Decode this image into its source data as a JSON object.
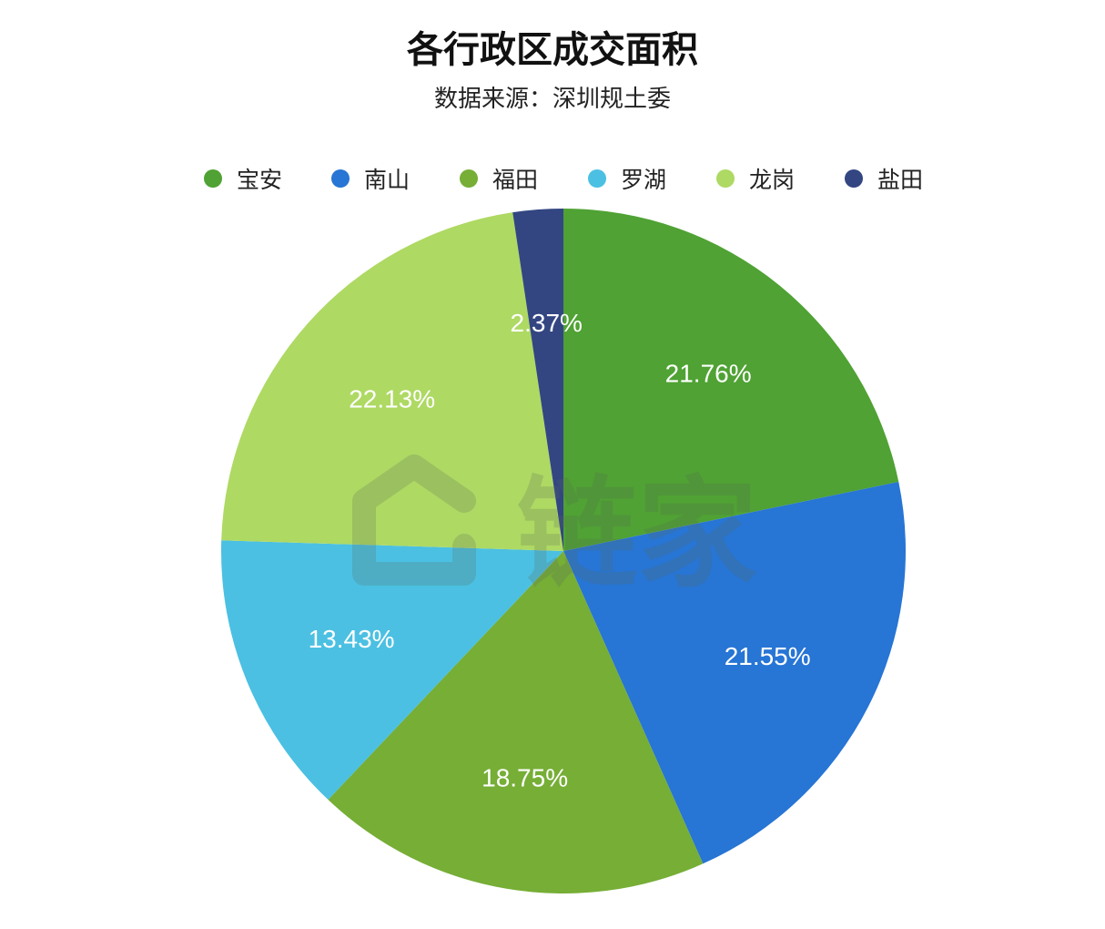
{
  "chart_data": {
    "type": "pie",
    "title": "各行政区成交面积",
    "subtitle": "数据来源：深圳规土委",
    "legend_position": "top",
    "categories": [
      "宝安",
      "南山",
      "福田",
      "罗湖",
      "龙岗",
      "盐田"
    ],
    "values": [
      21.76,
      21.55,
      18.75,
      13.43,
      22.13,
      2.37
    ],
    "labels": [
      "21.76%",
      "21.55%",
      "18.75%",
      "13.43%",
      "22.13%",
      "2.37%"
    ],
    "colors": [
      "#4fa233",
      "#2775d4",
      "#76ae36",
      "#4bc0e2",
      "#aed963",
      "#334682"
    ]
  },
  "watermark": {
    "text": "链家"
  }
}
